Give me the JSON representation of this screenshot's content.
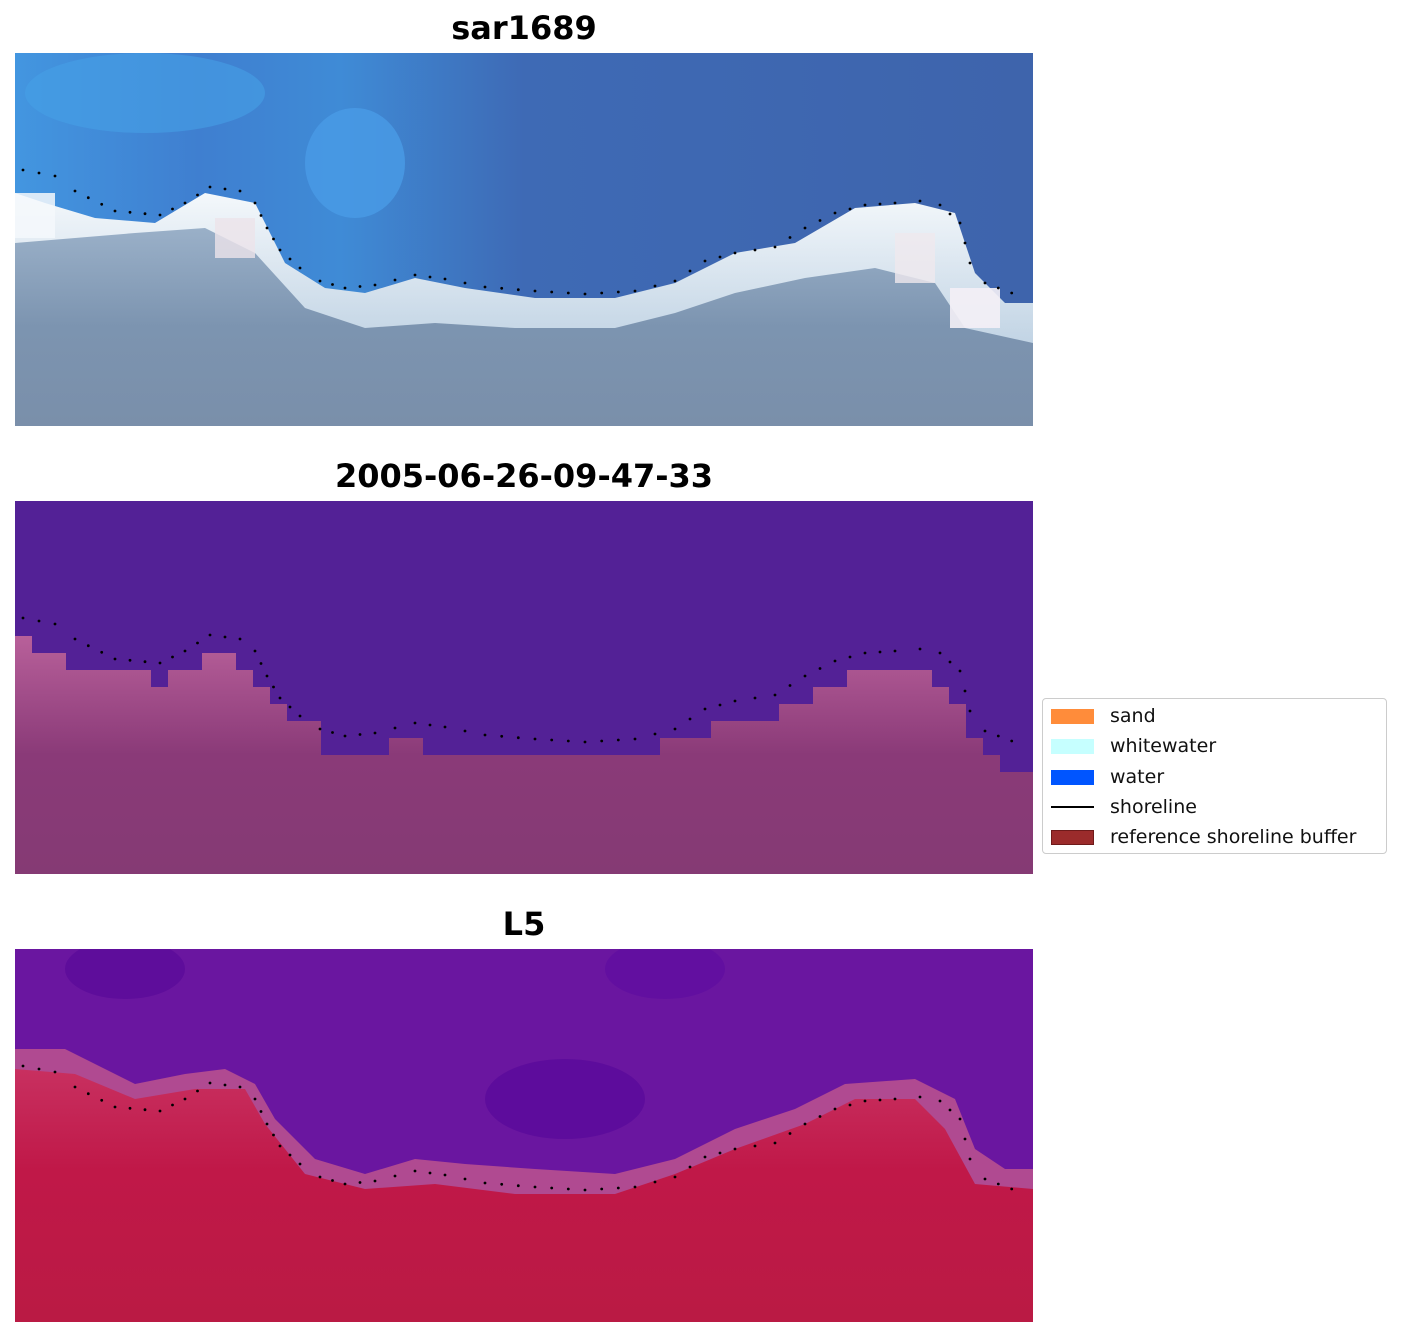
{
  "panels": [
    {
      "title": "sar1689"
    },
    {
      "title": "2005-06-26-09-47-33"
    },
    {
      "title": "L5"
    }
  ],
  "legend": {
    "items": [
      {
        "label": "sand",
        "kind": "patch",
        "color": "#ff8c3a"
      },
      {
        "label": "whitewater",
        "kind": "patch",
        "color": "#c6ffff"
      },
      {
        "label": "water",
        "kind": "patch",
        "color": "#0055ff"
      },
      {
        "label": "shoreline",
        "kind": "line",
        "color": "#000000"
      },
      {
        "label": "reference shoreline buffer",
        "kind": "patch",
        "color": "#9b2b2b"
      }
    ]
  },
  "colors": {
    "rgb_water_deep": "#3f67b0",
    "rgb_water_light": "#4aa0e6",
    "rgb_whitewater": "#e8eef4",
    "rgb_sand": "#7c94b0",
    "class_water": "#532196",
    "class_land": "#a0457f",
    "index_water": "#6a16a0",
    "index_land": "#c01848",
    "shoreline_dots": "#000000"
  }
}
